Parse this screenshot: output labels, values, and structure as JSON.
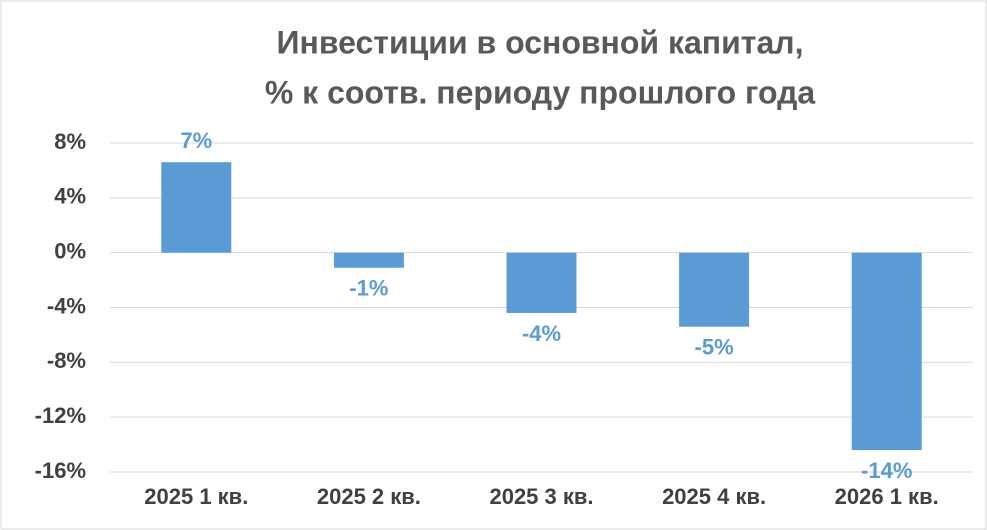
{
  "chart_data": {
    "type": "bar",
    "title": [
      "Инвестиции в основной капитал,",
      "% к соотв. периоду прошлого года"
    ],
    "categories": [
      "2025 1 кв.",
      "2025 2 кв.",
      "2025 3 кв.",
      "2025 4 кв.",
      "2026 1 кв."
    ],
    "values": [
      6.6,
      -1.1,
      -4.4,
      -5.4,
      -14.4
    ],
    "value_labels": [
      "7%",
      "-1%",
      "-4%",
      "-5%",
      "-14%"
    ],
    "color": "#5b9bd5",
    "ylim": [
      -16,
      8
    ],
    "yticks": [
      {
        "value": -16,
        "label": "-16%"
      },
      {
        "value": -12,
        "label": "-12%"
      },
      {
        "value": -8,
        "label": "-8%"
      },
      {
        "value": -4,
        "label": "-4%"
      },
      {
        "value": 0,
        "label": "0%"
      },
      {
        "value": 4,
        "label": "4%"
      },
      {
        "value": 8,
        "label": "8%"
      }
    ],
    "grid": true
  }
}
